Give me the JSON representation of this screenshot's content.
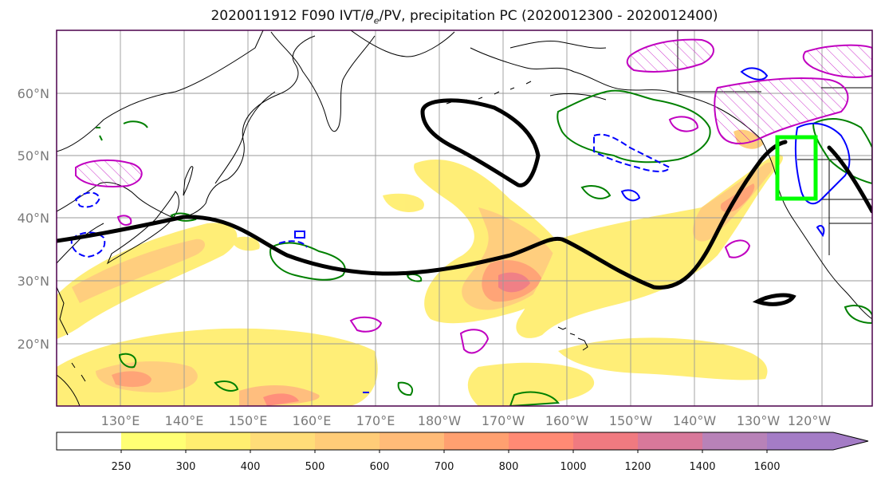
{
  "title": {
    "prefix": "2020011912 F090 IVT/",
    "theta": "θ",
    "theta_sub": "e",
    "suffix": "/PV, precipitation PC (2020012300 - 2020012400)"
  },
  "map": {
    "lat_labels": [
      "60°N",
      "50°N",
      "40°N",
      "30°N",
      "20°N"
    ],
    "lon_labels": [
      "130°E",
      "140°E",
      "150°E",
      "160°E",
      "170°E",
      "180°W",
      "170°W",
      "160°W",
      "150°W",
      "140°W",
      "130°W",
      "120°W"
    ],
    "colors": {
      "land_outline": "#000000",
      "pv_line": "#000000",
      "theta_green": "#008000",
      "theta_blue": "#0000ff",
      "theta_magenta": "#c000c0",
      "target_box": "#00ff00",
      "grid": "#9a9a9a"
    }
  },
  "colorbar": {
    "levels": [
      "250",
      "300",
      "400",
      "500",
      "600",
      "700",
      "800",
      "1000",
      "1200",
      "1400",
      "1600"
    ],
    "colors": [
      "#ffffff",
      "#ffff74",
      "#ffee70",
      "#ffdd78",
      "#ffcc78",
      "#ffbb78",
      "#ffa070",
      "#ff8a74",
      "#f07a80",
      "#d8789a",
      "#b882b8",
      "#a47cc6"
    ]
  }
}
